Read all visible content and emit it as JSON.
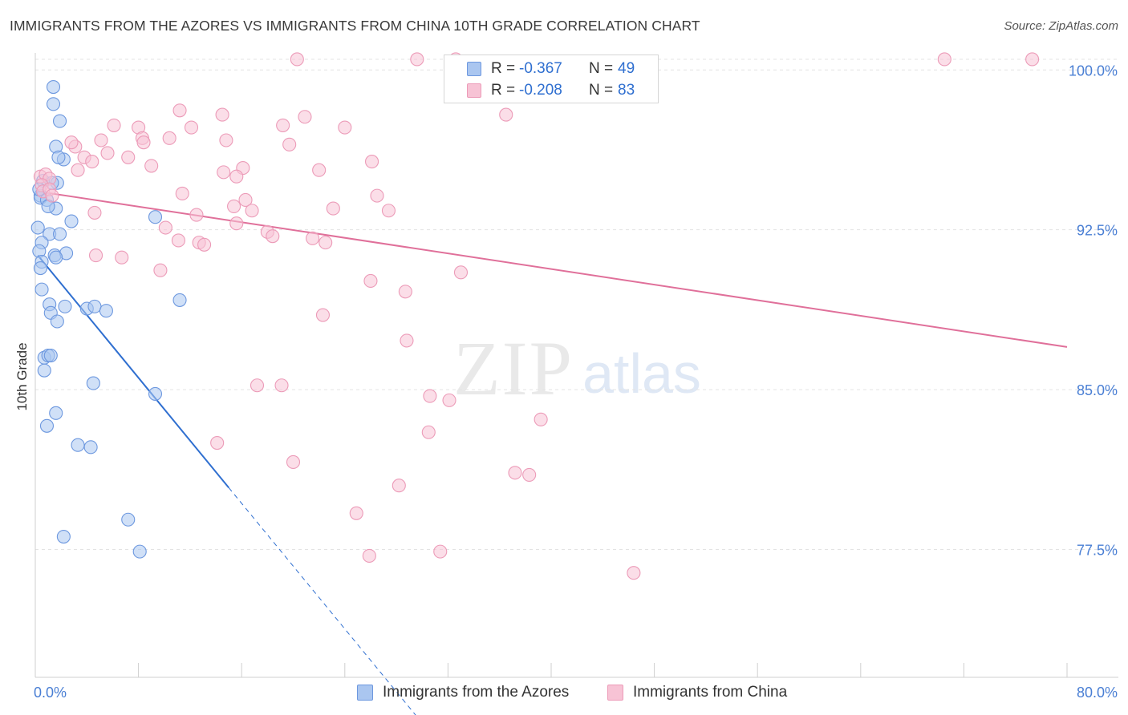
{
  "chart_data": {
    "type": "scatter",
    "title": "IMMIGRANTS FROM THE AZORES VS IMMIGRANTS FROM CHINA 10TH GRADE CORRELATION CHART",
    "source": "Source: ZipAtlas.com",
    "ylabel": "10th Grade",
    "watermark": {
      "zip": "ZIP",
      "atlas": "atlas"
    },
    "xlim": [
      0,
      80
    ],
    "ylim": [
      71.5,
      100.8
    ],
    "x_tick_labels": {
      "min": "0.0%",
      "max": "80.0%"
    },
    "x_minor_ticks": [
      0,
      8,
      16,
      24,
      32,
      40,
      48,
      56,
      64,
      72,
      80
    ],
    "y_ticks": [
      {
        "value": 100.0,
        "label": "100.0%"
      },
      {
        "value": 92.5,
        "label": "92.5%"
      },
      {
        "value": 85.0,
        "label": "85.0%"
      },
      {
        "value": 77.5,
        "label": "77.5%"
      }
    ],
    "legend": {
      "r_label": "R = ",
      "n_label": "N = "
    },
    "series": [
      {
        "name": "Immigrants from the Azores",
        "color": "#4a7fd4",
        "fill": "#aac6f0",
        "stroke": "#6d98df",
        "line_color": "#2f6fd0",
        "r": "-0.367",
        "n": "49",
        "trend": {
          "x0": 0.2,
          "y0": 91.3,
          "x1": 15.0,
          "y1": 80.4,
          "x_dash_end": 29.5
        },
        "points": [
          [
            1.4,
            99.2
          ],
          [
            1.4,
            98.4
          ],
          [
            1.9,
            97.6
          ],
          [
            1.6,
            96.4
          ],
          [
            2.2,
            95.8
          ],
          [
            1.8,
            95.9
          ],
          [
            0.6,
            94.8
          ],
          [
            1.7,
            94.7
          ],
          [
            1.3,
            94.7
          ],
          [
            0.4,
            94.1
          ],
          [
            0.4,
            94.0
          ],
          [
            0.9,
            93.9
          ],
          [
            1.6,
            93.5
          ],
          [
            1.0,
            93.6
          ],
          [
            2.8,
            92.9
          ],
          [
            9.3,
            93.1
          ],
          [
            0.2,
            92.6
          ],
          [
            1.1,
            92.3
          ],
          [
            1.9,
            92.3
          ],
          [
            0.5,
            91.9
          ],
          [
            0.3,
            91.5
          ],
          [
            1.5,
            91.3
          ],
          [
            2.4,
            91.4
          ],
          [
            1.6,
            91.2
          ],
          [
            0.5,
            91.0
          ],
          [
            0.4,
            90.7
          ],
          [
            0.5,
            89.7
          ],
          [
            1.1,
            89.0
          ],
          [
            2.3,
            88.9
          ],
          [
            4.0,
            88.8
          ],
          [
            4.6,
            88.9
          ],
          [
            5.5,
            88.7
          ],
          [
            11.2,
            89.2
          ],
          [
            1.2,
            88.6
          ],
          [
            1.7,
            88.2
          ],
          [
            0.7,
            86.5
          ],
          [
            1.0,
            86.6
          ],
          [
            1.2,
            86.6
          ],
          [
            0.7,
            85.9
          ],
          [
            4.5,
            85.3
          ],
          [
            9.3,
            84.8
          ],
          [
            1.6,
            83.9
          ],
          [
            0.9,
            83.3
          ],
          [
            3.3,
            82.4
          ],
          [
            4.3,
            82.3
          ],
          [
            7.2,
            78.9
          ],
          [
            2.2,
            78.1
          ],
          [
            8.1,
            77.4
          ],
          [
            0.3,
            94.4
          ]
        ]
      },
      {
        "name": "Immigrants from China",
        "color": "#e0709a",
        "fill": "#f7c3d5",
        "stroke": "#ec9bb8",
        "line_color": "#e0709a",
        "r": "-0.208",
        "n": "83",
        "trend": {
          "x0": 0.2,
          "y0": 94.3,
          "x1": 80.0,
          "y1": 87.0
        },
        "points": [
          [
            20.3,
            100.5
          ],
          [
            29.6,
            100.5
          ],
          [
            32.6,
            100.5
          ],
          [
            70.5,
            100.5
          ],
          [
            77.3,
            100.5
          ],
          [
            32.5,
            100.4
          ],
          [
            32.7,
            100.3
          ],
          [
            11.2,
            98.1
          ],
          [
            14.5,
            97.9
          ],
          [
            20.9,
            97.8
          ],
          [
            36.5,
            97.9
          ],
          [
            8.0,
            97.3
          ],
          [
            6.1,
            97.4
          ],
          [
            12.1,
            97.3
          ],
          [
            19.2,
            97.4
          ],
          [
            24.0,
            97.3
          ],
          [
            5.1,
            96.7
          ],
          [
            8.3,
            96.8
          ],
          [
            8.4,
            96.6
          ],
          [
            10.4,
            96.8
          ],
          [
            14.8,
            96.7
          ],
          [
            19.7,
            96.5
          ],
          [
            3.1,
            96.4
          ],
          [
            2.8,
            96.6
          ],
          [
            5.6,
            96.1
          ],
          [
            7.2,
            95.9
          ],
          [
            3.8,
            95.9
          ],
          [
            4.4,
            95.7
          ],
          [
            9.0,
            95.5
          ],
          [
            16.1,
            95.4
          ],
          [
            22.0,
            95.3
          ],
          [
            26.1,
            95.7
          ],
          [
            14.6,
            95.2
          ],
          [
            15.6,
            95.0
          ],
          [
            3.3,
            95.3
          ],
          [
            0.4,
            95.0
          ],
          [
            0.8,
            95.1
          ],
          [
            1.1,
            94.9
          ],
          [
            0.5,
            94.6
          ],
          [
            0.6,
            94.3
          ],
          [
            1.1,
            94.4
          ],
          [
            1.3,
            94.1
          ],
          [
            11.4,
            94.2
          ],
          [
            16.3,
            93.9
          ],
          [
            26.5,
            94.1
          ],
          [
            23.1,
            93.5
          ],
          [
            15.4,
            93.6
          ],
          [
            4.6,
            93.3
          ],
          [
            12.5,
            93.2
          ],
          [
            16.8,
            93.4
          ],
          [
            27.4,
            93.4
          ],
          [
            10.1,
            92.6
          ],
          [
            15.6,
            92.8
          ],
          [
            18.0,
            92.4
          ],
          [
            18.4,
            92.2
          ],
          [
            11.1,
            92.0
          ],
          [
            12.7,
            91.9
          ],
          [
            13.1,
            91.8
          ],
          [
            21.5,
            92.1
          ],
          [
            22.5,
            91.9
          ],
          [
            6.7,
            91.2
          ],
          [
            4.7,
            91.3
          ],
          [
            9.7,
            90.6
          ],
          [
            33.0,
            90.5
          ],
          [
            26.0,
            90.1
          ],
          [
            28.7,
            89.6
          ],
          [
            22.3,
            88.5
          ],
          [
            28.8,
            87.3
          ],
          [
            17.2,
            85.2
          ],
          [
            19.1,
            85.2
          ],
          [
            30.6,
            84.7
          ],
          [
            32.1,
            84.5
          ],
          [
            39.2,
            83.6
          ],
          [
            30.5,
            83.0
          ],
          [
            14.1,
            82.5
          ],
          [
            20.0,
            81.6
          ],
          [
            37.2,
            81.1
          ],
          [
            38.3,
            81.0
          ],
          [
            28.2,
            80.5
          ],
          [
            24.9,
            79.2
          ],
          [
            25.9,
            77.2
          ],
          [
            31.4,
            77.4
          ],
          [
            46.4,
            76.4
          ]
        ]
      }
    ]
  }
}
